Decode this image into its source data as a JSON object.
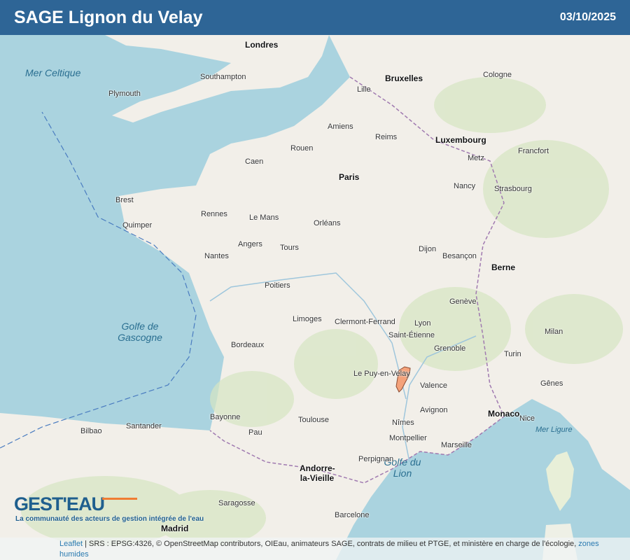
{
  "header": {
    "title": "SAGE Lignon du Velay",
    "date": "03/10/2025"
  },
  "map": {
    "colors": {
      "sea": "#aad3df",
      "land": "#f2efe9",
      "forest": "#cfe3b8",
      "highlight": "#f4a27a",
      "header": "#2e6596"
    },
    "highlighted_area": "SAGE Lignon du Velay",
    "seas": [
      "Mer Celtique",
      "Golfe de Gascogne",
      "Golfe du Lion",
      "Mer Ligure"
    ],
    "capitals": [
      "Paris",
      "Londres",
      "Bruxelles",
      "Luxembourg",
      "Berne",
      "Madrid",
      "Monaco",
      "Andorre-la-Vieille"
    ],
    "cities": [
      "Rennes",
      "Nantes",
      "Bordeaux",
      "Toulouse",
      "Lyon",
      "Marseille",
      "Montpellier",
      "Clermont-Ferrand",
      "Limoges",
      "Poitiers",
      "Orléans",
      "Tours",
      "Dijon",
      "Strasbourg",
      "Nancy",
      "Reims",
      "Amiens",
      "Rouen",
      "Caen",
      "Le Mans",
      "Angers",
      "Brest",
      "Quimper",
      "Grenoble",
      "Saint-Étienne",
      "Valence",
      "Le Puy-en-Velay",
      "Nice",
      "Avignon",
      "Nîmes",
      "Perpignan",
      "Pau",
      "Bayonne",
      "Besançon",
      "Metz",
      "Lille",
      "Genève",
      "Turin",
      "Milan",
      "Barcelone",
      "Saragosse",
      "Bilbao",
      "Santander",
      "Gênes",
      "Southampton",
      "Plymouth",
      "Cologne",
      "Francfort"
    ]
  },
  "logo": {
    "name": "GEST'EAU",
    "tagline": "La communauté des acteurs de gestion intégrée de l'eau"
  },
  "attribution": {
    "leaflet": "Leaflet",
    "text": " | SRS : EPSG:4326, © OpenStreetMap contributors, OIEau, animateurs SAGE, contrats de milieu et PTGE, et ministère en charge de l'écologie, ",
    "link": "zones humides"
  }
}
